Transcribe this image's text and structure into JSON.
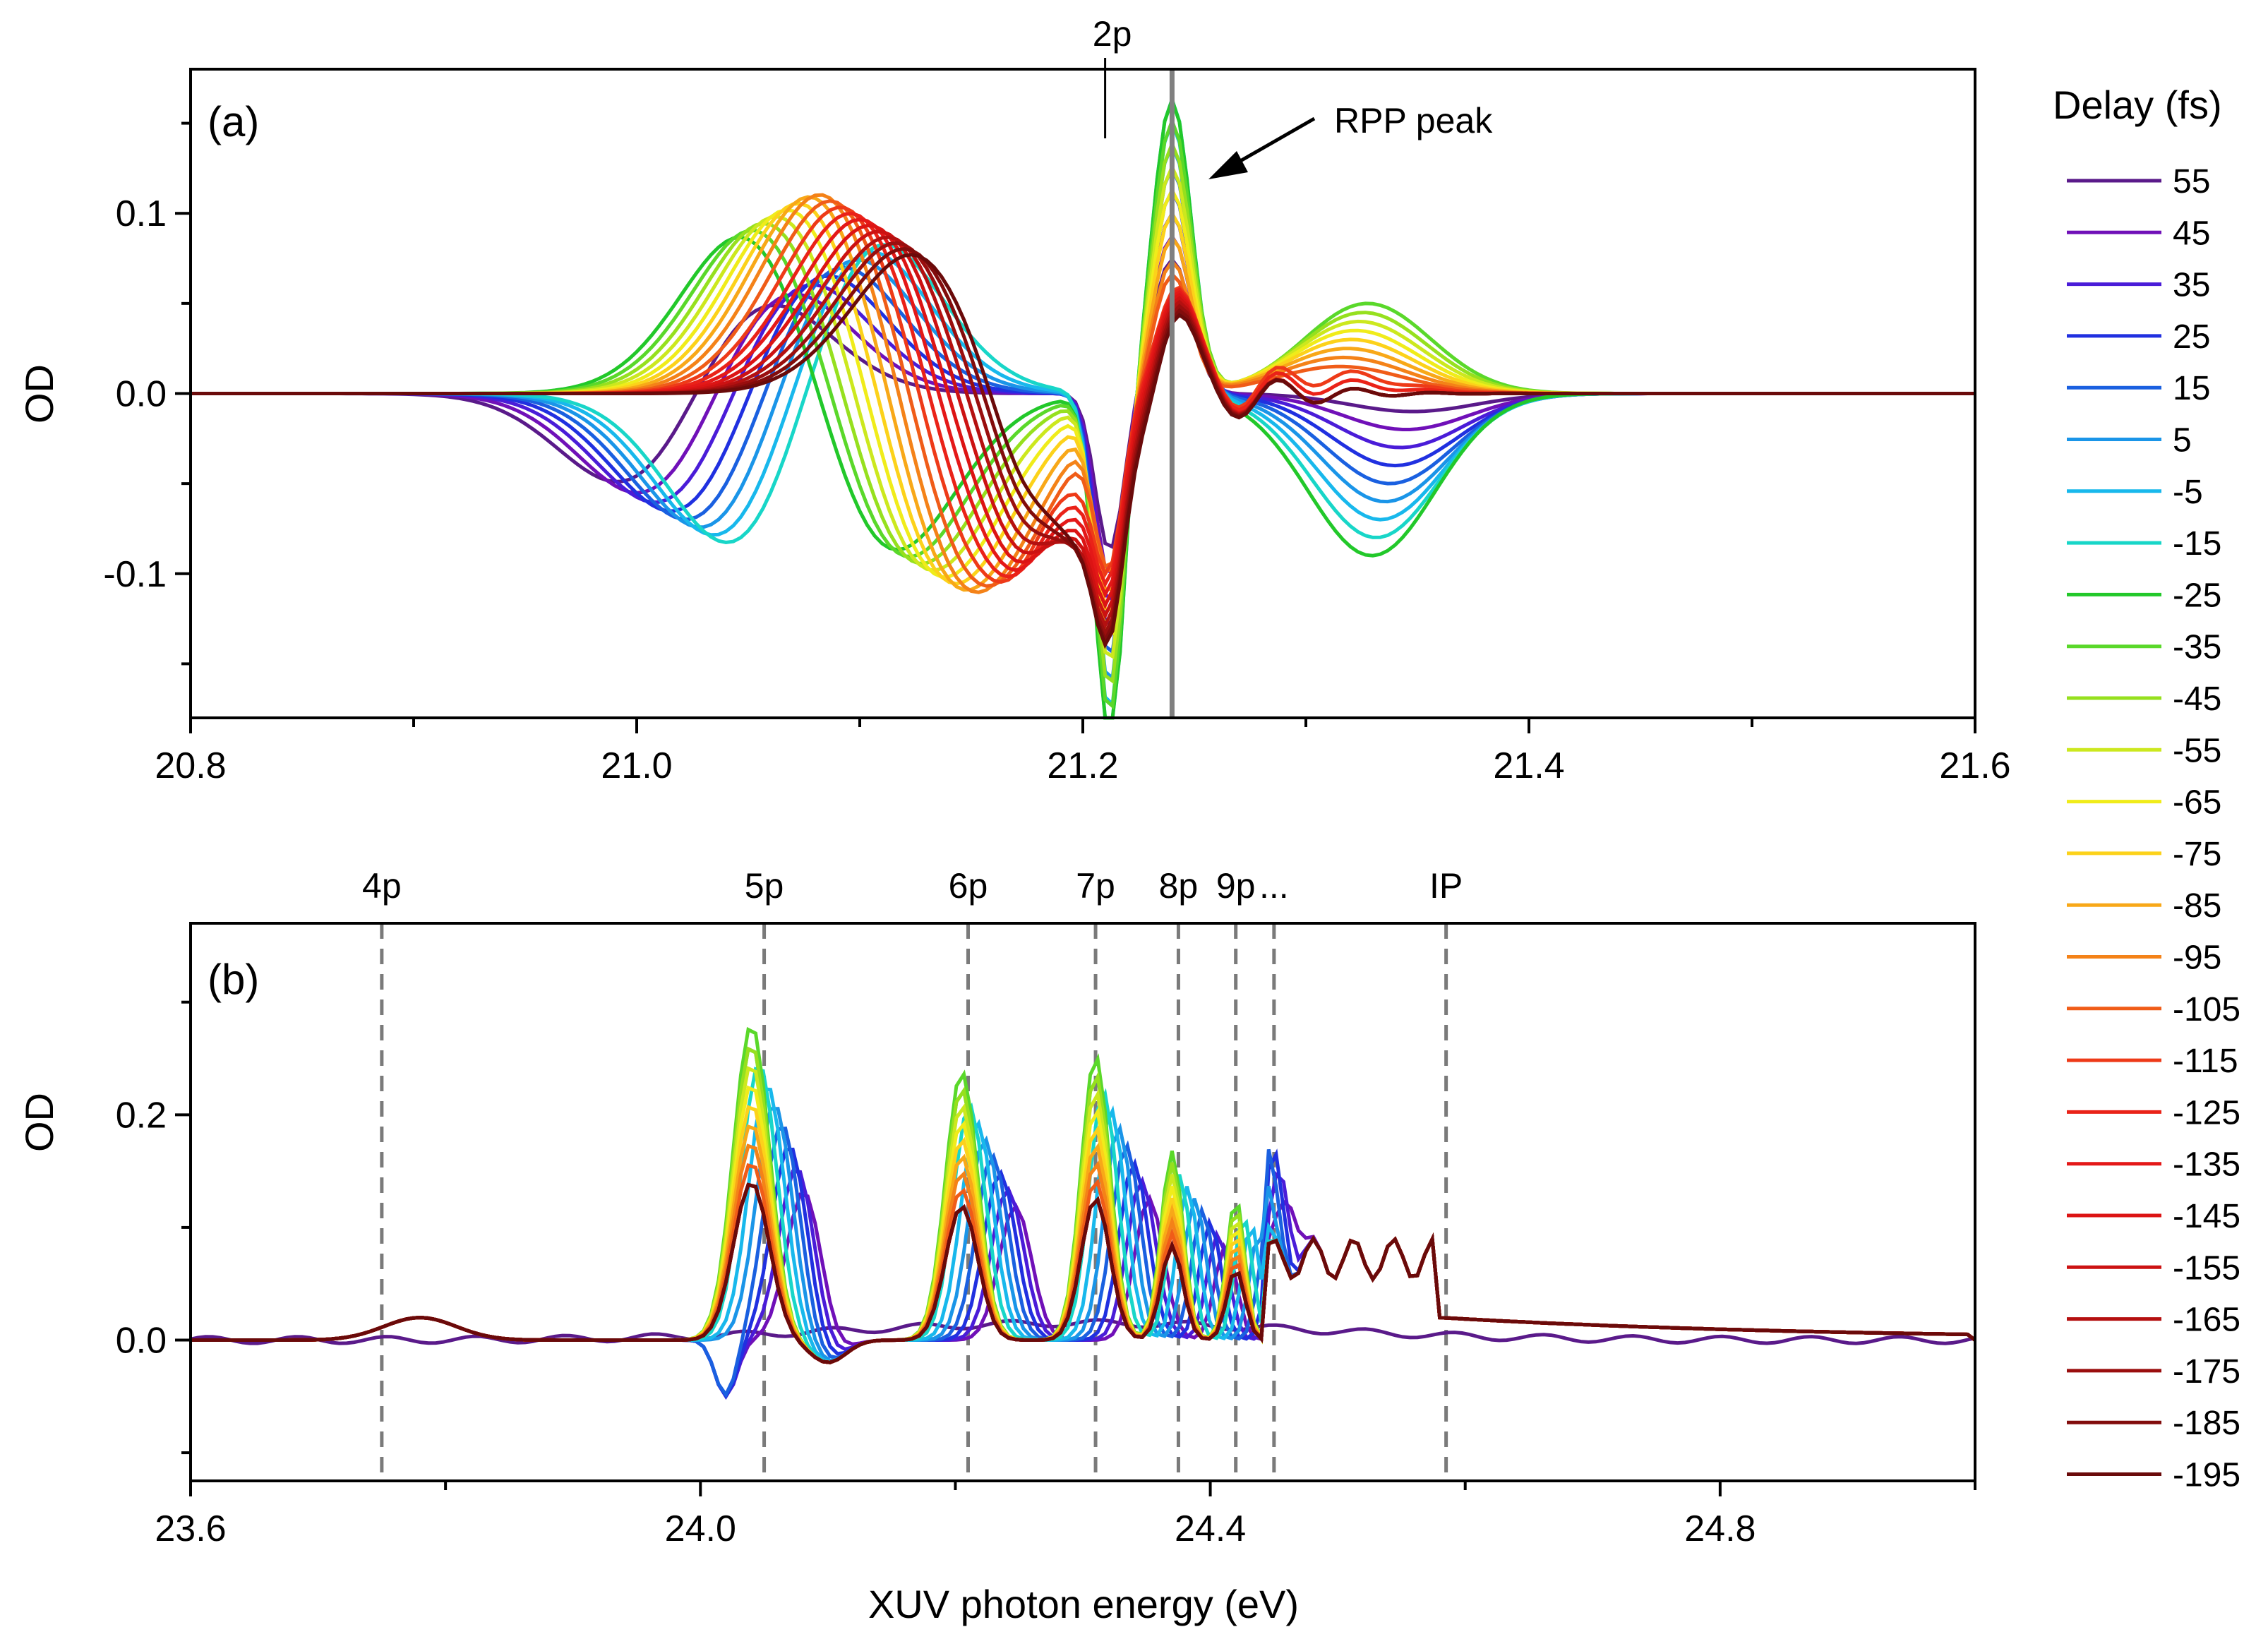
{
  "chart_data": [
    {
      "type": "line",
      "panel_label": "(a)",
      "xlabel": "",
      "ylabel": "OD",
      "xlim": [
        20.8,
        21.6
      ],
      "ylim": [
        -0.18,
        0.18
      ],
      "xticks": [
        20.8,
        21.0,
        21.2,
        21.4,
        21.6
      ],
      "xtick_labels": [
        "20.8",
        "21.0",
        "21.2",
        "21.4",
        "21.6"
      ],
      "yticks": [
        -0.1,
        0.0,
        0.1
      ],
      "ytick_labels": [
        "-0.1",
        "0.0",
        "0.1"
      ],
      "annotations": [
        {
          "text": "2p",
          "x": 21.21
        },
        {
          "text": "RPP peak",
          "x": 21.24
        }
      ],
      "marker_line_x": 21.24
    },
    {
      "type": "line",
      "panel_label": "(b)",
      "xlabel": "XUV photon energy (eV)",
      "ylabel": "OD",
      "xlim": [
        23.6,
        25.0
      ],
      "ylim": [
        -0.125,
        0.37
      ],
      "xticks": [
        23.6,
        24.0,
        24.4,
        24.8
      ],
      "xtick_labels": [
        "23.6",
        "24.0",
        "24.4",
        "24.8"
      ],
      "yticks": [
        0.0,
        0.2
      ],
      "ytick_labels": [
        "0.0",
        "0.2"
      ],
      "levels": [
        {
          "label": "4p",
          "x": 23.75
        },
        {
          "label": "5p",
          "x": 24.05
        },
        {
          "label": "6p",
          "x": 24.21
        },
        {
          "label": "7p",
          "x": 24.31
        },
        {
          "label": "8p",
          "x": 24.375
        },
        {
          "label": "9p",
          "x": 24.42
        },
        {
          "label": "...",
          "x": 24.45
        },
        {
          "label": "IP",
          "x": 24.585
        }
      ]
    }
  ],
  "legend": {
    "title": "Delay (fs)",
    "entries": [
      {
        "label": "55",
        "color": "#5a1a8a"
      },
      {
        "label": "45",
        "color": "#7010b8"
      },
      {
        "label": "35",
        "color": "#4a1cd8"
      },
      {
        "label": "25",
        "color": "#2030e0"
      },
      {
        "label": "15",
        "color": "#1a60e0"
      },
      {
        "label": "5",
        "color": "#1a95e8"
      },
      {
        "label": "-5",
        "color": "#18b8ec"
      },
      {
        "label": "-15",
        "color": "#18d6c8"
      },
      {
        "label": "-25",
        "color": "#22c82a"
      },
      {
        "label": "-35",
        "color": "#5ad82a"
      },
      {
        "label": "-45",
        "color": "#96e01e"
      },
      {
        "label": "-55",
        "color": "#cce81e"
      },
      {
        "label": "-65",
        "color": "#f0ec1a"
      },
      {
        "label": "-75",
        "color": "#fcd21a"
      },
      {
        "label": "-85",
        "color": "#f8a818"
      },
      {
        "label": "-95",
        "color": "#f48218"
      },
      {
        "label": "-105",
        "color": "#f05c18"
      },
      {
        "label": "-115",
        "color": "#ee3a18"
      },
      {
        "label": "-125",
        "color": "#ea2218"
      },
      {
        "label": "-135",
        "color": "#e41818"
      },
      {
        "label": "-145",
        "color": "#dc1414"
      },
      {
        "label": "-155",
        "color": "#cc1212"
      },
      {
        "label": "-165",
        "color": "#b41010"
      },
      {
        "label": "-175",
        "color": "#9a0e0e"
      },
      {
        "label": "-185",
        "color": "#820c0c"
      },
      {
        "label": "-195",
        "color": "#6a0a0a"
      }
    ]
  }
}
